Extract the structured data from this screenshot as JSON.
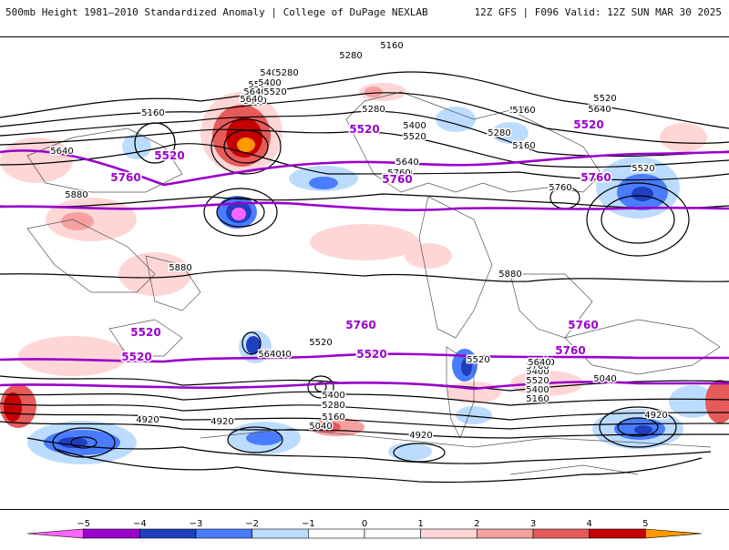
{
  "header": {
    "title_left": "500mb Height 1981–2010 Standardized Anomaly | College of DuPage NEXLAB",
    "title_right": "12Z GFS | F096 Valid: 12Z SUN MAR 30 2025"
  },
  "colors": {
    "neg5": "#ff66ff",
    "neg4": "#9900cc",
    "neg3": "#1f3fbf",
    "neg2": "#4a7cff",
    "neg1": "#bcdcff",
    "pos1": "#ffd6d6",
    "pos2": "#f7a0a0",
    "pos3": "#e65a5a",
    "pos4": "#c40000",
    "pos5": "#ff9900",
    "contour": "#000000",
    "key_contour": "#9900cc"
  },
  "colorbar": {
    "ticks": [
      "−5",
      "−4",
      "−3",
      "−2",
      "−1",
      "0",
      "1",
      "2",
      "3",
      "4",
      "5"
    ]
  },
  "contour_labels": {
    "black": [
      "5160",
      "5280",
      "5400",
      "5520",
      "5640",
      "5400",
      "5160",
      "5640",
      "5880",
      "5880",
      "5880",
      "5160",
      "5280",
      "5400",
      "5520",
      "5640",
      "5160",
      "5280",
      "5400",
      "5520",
      "5640",
      "5760",
      "5760",
      "5880",
      "5640",
      "5520",
      "5400",
      "5280",
      "5160",
      "5040",
      "4920",
      "4920",
      "5040",
      "5160",
      "5280",
      "5400",
      "5640",
      "5520",
      "5640",
      "5760",
      "5640",
      "5520",
      "5400",
      "5280",
      "5160",
      "5040",
      "4920",
      "4920",
      "5520",
      "5640",
      "5760",
      "5280",
      "5160",
      "5520"
    ],
    "purple": [
      "5520",
      "5760",
      "5520",
      "5760",
      "5520",
      "5760",
      "5520",
      "5760",
      "5760",
      "5520",
      "5520",
      "5760"
    ]
  }
}
